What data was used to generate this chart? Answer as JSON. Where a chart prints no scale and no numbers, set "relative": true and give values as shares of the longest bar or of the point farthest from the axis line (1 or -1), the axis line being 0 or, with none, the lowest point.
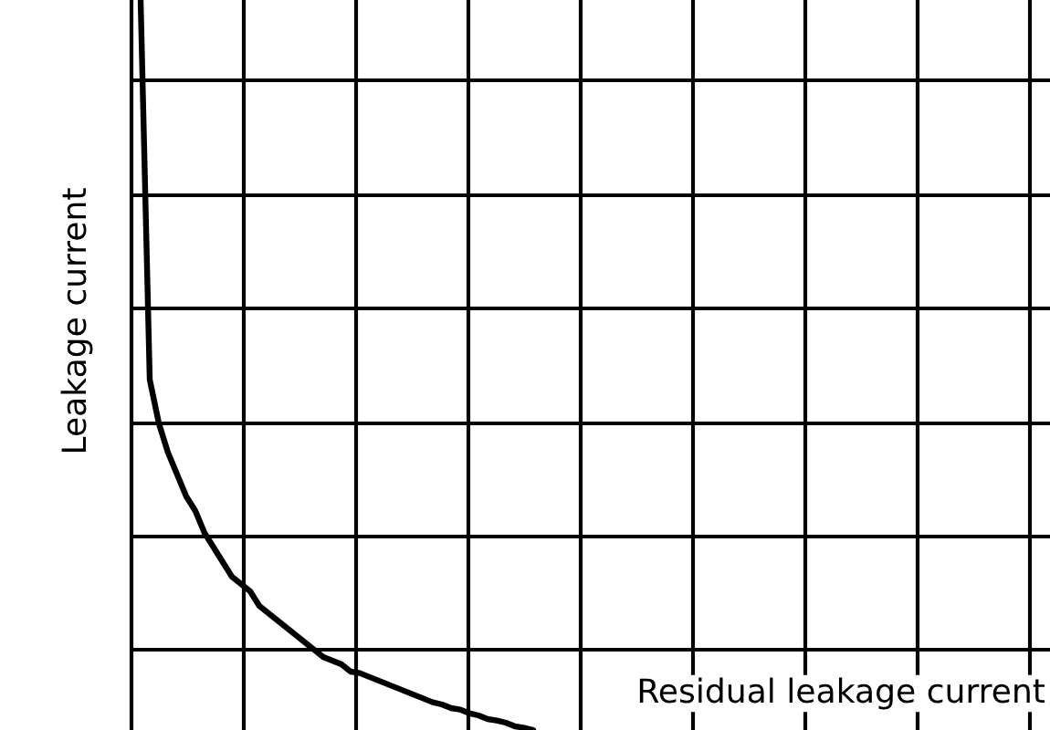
{
  "chart_data": {
    "type": "line",
    "relative": true,
    "xlabel": "Residual leakage current",
    "ylabel": "Leakage current",
    "grid": true,
    "color": "#000000",
    "categories": [
      null,
      null,
      null,
      null,
      null,
      null,
      null,
      null,
      null,
      null,
      null,
      null,
      null,
      null,
      null,
      null,
      null,
      null,
      null,
      null,
      null,
      null,
      null,
      null,
      null,
      null,
      null,
      null,
      null,
      null,
      null,
      null,
      null,
      null,
      null,
      null,
      null,
      null,
      null,
      null,
      null,
      null,
      null,
      null
    ],
    "values": [
      1.0,
      0.48,
      0.42,
      0.38,
      0.35,
      0.32,
      0.3,
      0.27,
      0.25,
      0.23,
      0.21,
      0.2,
      0.19,
      0.17,
      0.16,
      0.15,
      0.14,
      0.13,
      0.12,
      0.11,
      0.1,
      0.095,
      0.09,
      0.08,
      0.078,
      0.073,
      0.068,
      0.063,
      0.058,
      0.053,
      0.048,
      0.043,
      0.038,
      0.035,
      0.03,
      0.028,
      0.023,
      0.02,
      0.015,
      0.013,
      0.01,
      0.005,
      0.003,
      0.0
    ]
  }
}
